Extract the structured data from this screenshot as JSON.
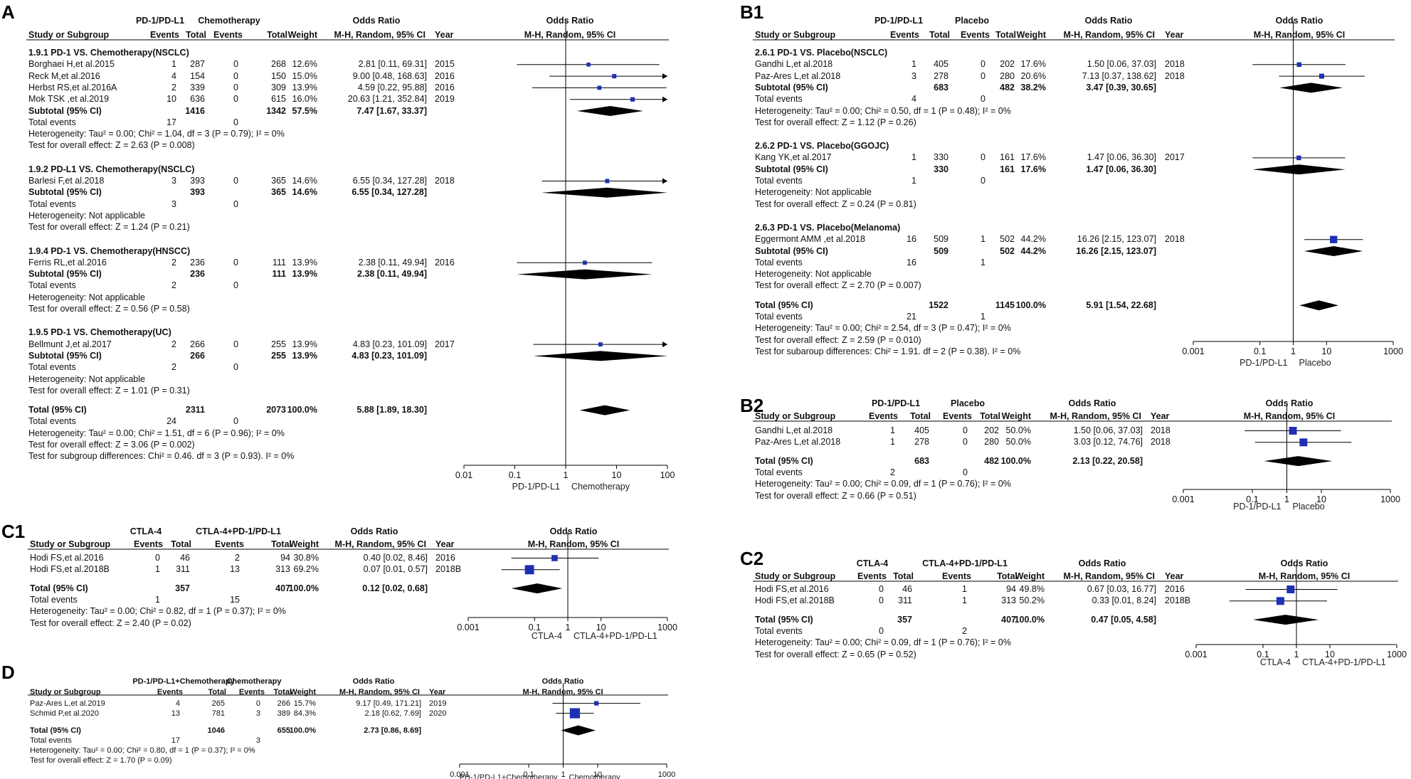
{
  "chart_data": [
    {
      "type": "forest",
      "panel": "A",
      "title": "Odds Ratio",
      "group1": "PD-1/PD-L1",
      "group2": "Chemotherapy",
      "col_headers": {
        "study": "Study or Subgroup",
        "events": "Events",
        "total": "Total",
        "weight": "Weight",
        "or_method": "M-H, Random, 95% CI",
        "year": "Year"
      },
      "axis": {
        "scale": "log",
        "ticks": [
          0.01,
          0.1,
          1,
          10,
          100
        ],
        "tick_labels": [
          "0.01",
          "0.1",
          "1",
          "10",
          "100"
        ],
        "left_label": "PD-1/PD-L1",
        "right_label": "Chemotherapy"
      },
      "subgroups": [
        {
          "name": "1.9.1 PD-1 VS. Chemotherapy(NSCLC)",
          "studies": [
            {
              "name": "Borghaei H,et al.2015",
              "e1": "1",
              "t1": "287",
              "e2": "0",
              "t2": "268",
              "weight": "12.6%",
              "ci_text": "2.81 [0.11, 69.31]",
              "year": "2015",
              "or": 2.81,
              "lo": 0.11,
              "hi": 69.31
            },
            {
              "name": "Reck M,et al.2016",
              "e1": "4",
              "t1": "154",
              "e2": "0",
              "t2": "150",
              "weight": "15.0%",
              "ci_text": "9.00 [0.48, 168.63]",
              "year": "2016",
              "or": 9.0,
              "lo": 0.48,
              "hi": 168.63
            },
            {
              "name": "Herbst RS,et al.2016A",
              "e1": "2",
              "t1": "339",
              "e2": "0",
              "t2": "309",
              "weight": "13.9%",
              "ci_text": "4.59 [0.22, 95.88]",
              "year": "2016",
              "or": 4.59,
              "lo": 0.22,
              "hi": 95.88
            },
            {
              "name": "Mok TSK ,et al.2019",
              "e1": "10",
              "t1": "636",
              "e2": "0",
              "t2": "615",
              "weight": "16.0%",
              "ci_text": "20.63 [1.21, 352.84]",
              "year": "2019",
              "or": 20.63,
              "lo": 1.21,
              "hi": 352.84
            }
          ],
          "subtotal": {
            "label": "Subtotal (95% CI)",
            "t1": "1416",
            "t2": "1342",
            "weight": "57.5%",
            "ci_text": "7.47 [1.67, 33.37]",
            "or": 7.47,
            "lo": 1.67,
            "hi": 33.37
          },
          "events": {
            "label": "Total events",
            "e1": "17",
            "e2": "0"
          },
          "heterogeneity": "Heterogeneity: Tau² = 0.00; Chi² = 1.04, df = 3 (P = 0.79); I² = 0%",
          "overall": "Test for overall effect: Z = 2.63 (P = 0.008)"
        },
        {
          "name": "1.9.2 PD-L1 VS. Chemotherapy(NSCLC)",
          "studies": [
            {
              "name": "Barlesi F,et al.2018",
              "e1": "3",
              "t1": "393",
              "e2": "0",
              "t2": "365",
              "weight": "14.6%",
              "ci_text": "6.55 [0.34, 127.28]",
              "year": "2018",
              "or": 6.55,
              "lo": 0.34,
              "hi": 127.28
            }
          ],
          "subtotal": {
            "label": "Subtotal (95% CI)",
            "t1": "393",
            "t2": "365",
            "weight": "14.6%",
            "ci_text": "6.55 [0.34, 127.28]",
            "or": 6.55,
            "lo": 0.34,
            "hi": 127.28
          },
          "events": {
            "label": "Total events",
            "e1": "3",
            "e2": "0"
          },
          "heterogeneity": "Heterogeneity: Not applicable",
          "overall": "Test for overall effect: Z = 1.24 (P = 0.21)"
        },
        {
          "name": "1.9.4 PD-1 VS. Chemotherapy(HNSCC)",
          "studies": [
            {
              "name": "Ferris RL,et al.2016",
              "e1": "2",
              "t1": "236",
              "e2": "0",
              "t2": "111",
              "weight": "13.9%",
              "ci_text": "2.38 [0.11, 49.94]",
              "year": "2016",
              "or": 2.38,
              "lo": 0.11,
              "hi": 49.94
            }
          ],
          "subtotal": {
            "label": "Subtotal (95% CI)",
            "t1": "236",
            "t2": "111",
            "weight": "13.9%",
            "ci_text": "2.38 [0.11, 49.94]",
            "or": 2.38,
            "lo": 0.11,
            "hi": 49.94
          },
          "events": {
            "label": "Total events",
            "e1": "2",
            "e2": "0"
          },
          "heterogeneity": "Heterogeneity: Not applicable",
          "overall": "Test for overall effect: Z = 0.56 (P = 0.58)"
        },
        {
          "name": "1.9.5 PD-1 VS. Chemotherapy(UC)",
          "studies": [
            {
              "name": "Bellmunt J,et al.2017",
              "e1": "2",
              "t1": "266",
              "e2": "0",
              "t2": "255",
              "weight": "13.9%",
              "ci_text": "4.83 [0.23, 101.09]",
              "year": "2017",
              "or": 4.83,
              "lo": 0.23,
              "hi": 101.09
            }
          ],
          "subtotal": {
            "label": "Subtotal (95% CI)",
            "t1": "266",
            "t2": "255",
            "weight": "13.9%",
            "ci_text": "4.83 [0.23, 101.09]",
            "or": 4.83,
            "lo": 0.23,
            "hi": 101.09
          },
          "events": {
            "label": "Total events",
            "e1": "2",
            "e2": "0"
          },
          "heterogeneity": "Heterogeneity: Not applicable",
          "overall": "Test for overall effect: Z = 1.01 (P = 0.31)"
        }
      ],
      "total": {
        "label": "Total (95% CI)",
        "t1": "2311",
        "t2": "2073",
        "weight": "100.0%",
        "ci_text": "5.88 [1.89, 18.30]",
        "or": 5.88,
        "lo": 1.89,
        "hi": 18.3
      },
      "total_events": {
        "label": "Total events",
        "e1": "24",
        "e2": "0"
      },
      "footer": [
        "Heterogeneity: Tau² = 0.00; Chi² = 1.51, df = 6 (P = 0.96); I² = 0%",
        "Test for overall effect: Z = 3.06 (P = 0.002)",
        "Test for subgroup differences: Chi² = 0.46. df = 3 (P = 0.93). I² = 0%"
      ]
    },
    {
      "type": "forest",
      "panel": "B1",
      "title": "Odds Ratio",
      "group1": "PD-1/PD-L1",
      "group2": "Placebo",
      "col_headers": {
        "study": "Study or Subgroup",
        "events": "Events",
        "total": "Total",
        "weight": "Weight",
        "or_method": "M-H, Random, 95% CI",
        "year": "Year"
      },
      "axis": {
        "scale": "log",
        "ticks": [
          0.001,
          0.1,
          1,
          10,
          1000
        ],
        "tick_labels": [
          "0.001",
          "0.1",
          "1",
          "10",
          "1000"
        ],
        "left_label": "PD-1/PD-L1",
        "right_label": "Placebo"
      },
      "subgroups": [
        {
          "name": "2.6.1 PD-1 VS. Placebo(NSCLC)",
          "studies": [
            {
              "name": "Gandhi L,et al.2018",
              "e1": "1",
              "t1": "405",
              "e2": "0",
              "t2": "202",
              "weight": "17.6%",
              "ci_text": "1.50 [0.06, 37.03]",
              "year": "2018",
              "or": 1.5,
              "lo": 0.06,
              "hi": 37.03
            },
            {
              "name": "Paz-Ares L,et al.2018",
              "e1": "3",
              "t1": "278",
              "e2": "0",
              "t2": "280",
              "weight": "20.6%",
              "ci_text": "7.13 [0.37, 138.62]",
              "year": "2018",
              "or": 7.13,
              "lo": 0.37,
              "hi": 138.62
            }
          ],
          "subtotal": {
            "label": "Subtotal (95% CI)",
            "t1": "683",
            "t2": "482",
            "weight": "38.2%",
            "ci_text": "3.47 [0.39, 30.65]",
            "or": 3.47,
            "lo": 0.39,
            "hi": 30.65
          },
          "events": {
            "label": "Total events",
            "e1": "4",
            "e2": "0"
          },
          "heterogeneity": "Heterogeneity: Tau² = 0.00; Chi² = 0.50, df = 1 (P = 0.48); I² = 0%",
          "overall": "Test for overall effect: Z = 1.12 (P = 0.26)"
        },
        {
          "name": "2.6.2 PD-1 VS. Placebo(GGOJC)",
          "studies": [
            {
              "name": "Kang YK,et al.2017",
              "e1": "1",
              "t1": "330",
              "e2": "0",
              "t2": "161",
              "weight": "17.6%",
              "ci_text": "1.47 [0.06, 36.30]",
              "year": "2017",
              "or": 1.47,
              "lo": 0.06,
              "hi": 36.3
            }
          ],
          "subtotal": {
            "label": "Subtotal (95% CI)",
            "t1": "330",
            "t2": "161",
            "weight": "17.6%",
            "ci_text": "1.47 [0.06, 36.30]",
            "or": 1.47,
            "lo": 0.06,
            "hi": 36.3
          },
          "events": {
            "label": "Total events",
            "e1": "1",
            "e2": "0"
          },
          "heterogeneity": "Heterogeneity: Not applicable",
          "overall": "Test for overall effect: Z = 0.24 (P = 0.81)"
        },
        {
          "name": "2.6.3 PD-1 VS. Placebo(Melanoma)",
          "studies": [
            {
              "name": "Eggermont AMM ,et al.2018",
              "e1": "16",
              "t1": "509",
              "e2": "1",
              "t2": "502",
              "weight": "44.2%",
              "ci_text": "16.26 [2.15, 123.07]",
              "year": "2018",
              "or": 16.26,
              "lo": 2.15,
              "hi": 123.07
            }
          ],
          "subtotal": {
            "label": "Subtotal (95% CI)",
            "t1": "509",
            "t2": "502",
            "weight": "44.2%",
            "ci_text": "16.26 [2.15, 123.07]",
            "or": 16.26,
            "lo": 2.15,
            "hi": 123.07
          },
          "events": {
            "label": "Total events",
            "e1": "16",
            "e2": "1"
          },
          "heterogeneity": "Heterogeneity: Not applicable",
          "overall": "Test for overall effect: Z = 2.70 (P = 0.007)"
        }
      ],
      "total": {
        "label": "Total (95% CI)",
        "t1": "1522",
        "t2": "1145",
        "weight": "100.0%",
        "ci_text": "5.91 [1.54, 22.68]",
        "or": 5.91,
        "lo": 1.54,
        "hi": 22.68
      },
      "total_events": {
        "label": "Total events",
        "e1": "21",
        "e2": "1"
      },
      "footer": [
        "Heterogeneity: Tau² = 0.00; Chi² = 2.54, df = 3 (P = 0.47); I² = 0%",
        "Test for overall effect: Z = 2.59 (P = 0.010)",
        "Test for subaroup differences: Chi² = 1.91. df = 2 (P = 0.38). I² = 0%"
      ]
    },
    {
      "type": "forest",
      "panel": "B2",
      "title": "Odds Ratio",
      "group1": "PD-1/PD-L1",
      "group2": "Placebo",
      "col_headers": {
        "study": "Study or Subgroup",
        "events": "Events",
        "total": "Total",
        "weight": "Weight",
        "or_method": "M-H, Random, 95% CI",
        "year": "Year"
      },
      "axis": {
        "scale": "log",
        "ticks": [
          0.001,
          0.1,
          1,
          10,
          1000
        ],
        "tick_labels": [
          "0.001",
          "0.1",
          "1",
          "10",
          "1000"
        ],
        "left_label": "PD-1/PD-L1",
        "right_label": "Placebo"
      },
      "studies": [
        {
          "name": "Gandhi L,et al.2018",
          "e1": "1",
          "t1": "405",
          "e2": "0",
          "t2": "202",
          "weight": "50.0%",
          "ci_text": "1.50 [0.06, 37.03]",
          "year": "2018",
          "or": 1.5,
          "lo": 0.06,
          "hi": 37.03
        },
        {
          "name": "Paz-Ares L,et al.2018",
          "e1": "1",
          "t1": "278",
          "e2": "0",
          "t2": "280",
          "weight": "50.0%",
          "ci_text": "3.03 [0.12, 74.76]",
          "year": "2018",
          "or": 3.03,
          "lo": 0.12,
          "hi": 74.76
        }
      ],
      "total": {
        "label": "Total (95% CI)",
        "t1": "683",
        "t2": "482",
        "weight": "100.0%",
        "ci_text": "2.13 [0.22, 20.58]",
        "or": 2.13,
        "lo": 0.22,
        "hi": 20.58
      },
      "total_events": {
        "label": "Total events",
        "e1": "2",
        "e2": "0"
      },
      "footer": [
        "Heterogeneity: Tau² = 0.00; Chi² = 0.09, df = 1 (P = 0.76); I² = 0%",
        "Test for overall effect: Z = 0.66 (P = 0.51)"
      ]
    },
    {
      "type": "forest",
      "panel": "C1",
      "title": "Odds Ratio",
      "group1": "CTLA-4",
      "group2": "CTLA-4+PD-1/PD-L1",
      "col_headers": {
        "study": "Study or Subgroup",
        "events": "Events",
        "total": "Total",
        "weight": "Weight",
        "or_method": "M-H, Random, 95% CI",
        "year": "Year"
      },
      "axis": {
        "scale": "log",
        "ticks": [
          0.001,
          0.1,
          1,
          10,
          1000
        ],
        "tick_labels": [
          "0.001",
          "0.1",
          "1",
          "10",
          "1000"
        ],
        "left_label": "CTLA-4",
        "right_label": "CTLA-4+PD-1/PD-L1"
      },
      "studies": [
        {
          "name": "Hodi FS,et al.2016",
          "e1": "0",
          "t1": "46",
          "e2": "2",
          "t2": "94",
          "weight": "30.8%",
          "ci_text": "0.40 [0.02, 8.46]",
          "year": "2016",
          "or": 0.4,
          "lo": 0.02,
          "hi": 8.46
        },
        {
          "name": "Hodi FS,et al.2018B",
          "e1": "1",
          "t1": "311",
          "e2": "13",
          "t2": "313",
          "weight": "69.2%",
          "ci_text": "0.07 [0.01, 0.57]",
          "year": "2018B",
          "or": 0.07,
          "lo": 0.01,
          "hi": 0.57
        }
      ],
      "total": {
        "label": "Total (95% CI)",
        "t1": "357",
        "t2": "407",
        "weight": "100.0%",
        "ci_text": "0.12 [0.02, 0.68]",
        "or": 0.12,
        "lo": 0.02,
        "hi": 0.68
      },
      "total_events": {
        "label": "Total events",
        "e1": "1",
        "e2": "15"
      },
      "footer": [
        "Heterogeneity: Tau² = 0.00; Chi² = 0.82, df = 1 (P = 0.37); I² = 0%",
        "Test for overall effect: Z = 2.40 (P = 0.02)"
      ]
    },
    {
      "type": "forest",
      "panel": "C2",
      "title": "Odds Ratio",
      "group1": "CTLA-4",
      "group2": "CTLA-4+PD-1/PD-L1",
      "col_headers": {
        "study": "Study or Subgroup",
        "events": "Events",
        "total": "Total",
        "weight": "Weight",
        "or_method": "M-H, Random, 95% CI",
        "year": "Year"
      },
      "axis": {
        "scale": "log",
        "ticks": [
          0.001,
          0.1,
          1,
          10,
          1000
        ],
        "tick_labels": [
          "0.001",
          "0.1",
          "1",
          "10",
          "1000"
        ],
        "left_label": "CTLA-4",
        "right_label": "CTLA-4+PD-1/PD-L1"
      },
      "studies": [
        {
          "name": "Hodi FS,et al.2016",
          "e1": "0",
          "t1": "46",
          "e2": "1",
          "t2": "94",
          "weight": "49.8%",
          "ci_text": "0.67 [0.03, 16.77]",
          "year": "2016",
          "or": 0.67,
          "lo": 0.03,
          "hi": 16.77
        },
        {
          "name": "Hodi FS,et al.2018B",
          "e1": "0",
          "t1": "311",
          "e2": "1",
          "t2": "313",
          "weight": "50.2%",
          "ci_text": "0.33 [0.01, 8.24]",
          "year": "2018B",
          "or": 0.33,
          "lo": 0.01,
          "hi": 8.24
        }
      ],
      "total": {
        "label": "Total (95% CI)",
        "t1": "357",
        "t2": "407",
        "weight": "100.0%",
        "ci_text": "0.47 [0.05, 4.58]",
        "or": 0.47,
        "lo": 0.05,
        "hi": 4.58
      },
      "total_events": {
        "label": "Total events",
        "e1": "0",
        "e2": "2"
      },
      "footer": [
        "Heterogeneity: Tau² = 0.00; Chi² = 0.09, df = 1 (P = 0.76); I² = 0%",
        "Test for overall effect: Z = 0.65 (P = 0.52)"
      ]
    },
    {
      "type": "forest",
      "panel": "D",
      "title": "Odds Ratio",
      "group1": "PD-1/PD-L1+Chemotherapy",
      "group2": "Chemotherapy",
      "col_headers": {
        "study": "Study or Subgroup",
        "events": "Events",
        "total": "Total",
        "weight": "Weight",
        "or_method": "M-H, Random, 95% CI",
        "year": "Year"
      },
      "axis": {
        "scale": "log",
        "ticks": [
          0.001,
          0.1,
          1,
          10,
          1000
        ],
        "tick_labels": [
          "0.001",
          "0.1",
          "1",
          "10",
          "1000"
        ],
        "left_label": "PD-1/PD-L1+Chemotherapy",
        "right_label": "Chemotherapy"
      },
      "studies": [
        {
          "name": "Paz-Ares L,et al.2019",
          "e1": "4",
          "t1": "265",
          "e2": "0",
          "t2": "266",
          "weight": "15.7%",
          "ci_text": "9.17 [0.49, 171.21]",
          "year": "2019",
          "or": 9.17,
          "lo": 0.49,
          "hi": 171.21
        },
        {
          "name": "Schmid P,et al.2020",
          "e1": "13",
          "t1": "781",
          "e2": "3",
          "t2": "389",
          "weight": "84.3%",
          "ci_text": "2.18 [0.62, 7.69]",
          "year": "2020",
          "or": 2.18,
          "lo": 0.62,
          "hi": 7.69
        }
      ],
      "total": {
        "label": "Total (95% CI)",
        "t1": "1046",
        "t2": "655",
        "weight": "100.0%",
        "ci_text": "2.73 [0.86, 8.69]",
        "or": 2.73,
        "lo": 0.86,
        "hi": 8.69
      },
      "total_events": {
        "label": "Total events",
        "e1": "17",
        "e2": "3"
      },
      "footer": [
        "Heterogeneity: Tau² = 0.00; Chi² = 0.80, df = 1 (P = 0.37); I² = 0%",
        "Test for overall effect: Z = 1.70 (P = 0.09)"
      ]
    }
  ],
  "colors": {
    "marker": "#1f2fb4",
    "diamond": "#000000",
    "line": "#000000"
  }
}
